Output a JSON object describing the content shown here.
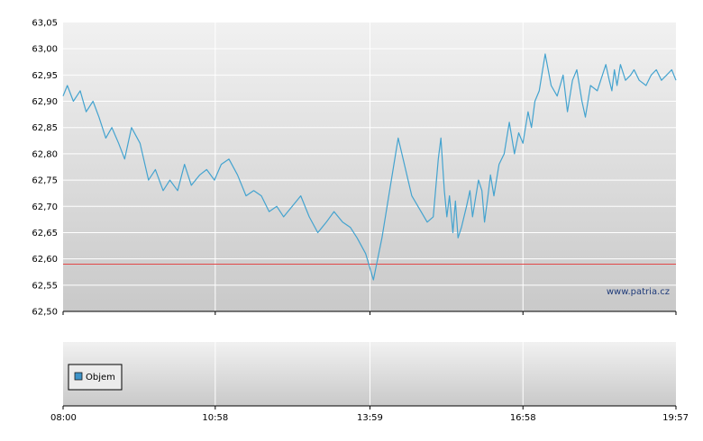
{
  "watermark": "www.patria.cz",
  "legend": {
    "label": "Objem",
    "swatch_color": "#3d93c8"
  },
  "colors": {
    "line": "#44a3cf",
    "reference": "#e24848",
    "grid": "#ffffff",
    "plot_top": "#f1f1f1",
    "plot_bottom": "#c9c9c9"
  },
  "chart_data": {
    "type": "line",
    "title": "",
    "xlabel": "",
    "ylabel": "",
    "ylim": [
      62.5,
      63.05
    ],
    "y_ticks": [
      "63,05",
      "63,00",
      "62,95",
      "62,90",
      "62,85",
      "62,80",
      "62,75",
      "62,70",
      "62,65",
      "62,60",
      "62,55",
      "62,50"
    ],
    "y_tick_values": [
      63.05,
      63.0,
      62.95,
      62.9,
      62.85,
      62.8,
      62.75,
      62.7,
      62.65,
      62.6,
      62.55,
      62.5
    ],
    "x_ticks": [
      "08:00",
      "10:58",
      "13:59",
      "16:58",
      "19:57"
    ],
    "x_tick_values": [
      "08:00",
      "10:58",
      "13:59",
      "16:58",
      "19:57"
    ],
    "grid": true,
    "reference_line": {
      "y": 62.59
    },
    "series": [
      {
        "x": [
          "08:00",
          "08:05",
          "08:12",
          "08:20",
          "08:27",
          "08:35",
          "08:42",
          "08:50",
          "08:57",
          "09:05",
          "09:12",
          "09:20",
          "09:30",
          "09:40",
          "09:48",
          "09:57",
          "10:05",
          "10:14",
          "10:22",
          "10:30",
          "10:40",
          "10:48",
          "10:57",
          "11:05",
          "11:14",
          "11:24",
          "11:34",
          "11:43",
          "11:52",
          "12:01",
          "12:10",
          "12:18",
          "12:28",
          "12:38",
          "12:48",
          "12:58",
          "13:08",
          "13:17",
          "13:27",
          "13:36",
          "13:44",
          "13:54",
          "14:03",
          "14:13",
          "14:24",
          "14:32",
          "14:48",
          "15:06",
          "15:13",
          "15:19",
          "15:22",
          "15:26",
          "15:29",
          "15:32",
          "15:36",
          "15:39",
          "15:42",
          "15:46",
          "15:52",
          "15:56",
          "15:59",
          "16:02",
          "16:06",
          "16:10",
          "16:13",
          "16:17",
          "16:20",
          "16:24",
          "16:30",
          "16:36",
          "16:42",
          "16:48",
          "16:53",
          "16:58",
          "17:04",
          "17:08",
          "17:12",
          "17:17",
          "17:24",
          "17:31",
          "17:38",
          "17:45",
          "17:50",
          "17:56",
          "18:01",
          "18:07",
          "18:11",
          "18:17",
          "18:25",
          "18:31",
          "18:35",
          "18:39",
          "18:42",
          "18:45",
          "18:48",
          "18:52",
          "18:58",
          "19:04",
          "19:08",
          "19:14",
          "19:22",
          "19:28",
          "19:34",
          "19:40",
          "19:46",
          "19:52",
          "19:57"
        ],
        "values": [
          62.91,
          62.93,
          62.9,
          62.92,
          62.88,
          62.9,
          62.87,
          62.83,
          62.85,
          62.82,
          62.79,
          62.85,
          62.82,
          62.75,
          62.77,
          62.73,
          62.75,
          62.73,
          62.78,
          62.74,
          62.76,
          62.77,
          62.75,
          62.78,
          62.79,
          62.76,
          62.72,
          62.73,
          62.72,
          62.69,
          62.7,
          62.68,
          62.7,
          62.72,
          62.68,
          62.65,
          62.67,
          62.69,
          62.67,
          62.66,
          62.64,
          62.61,
          62.56,
          62.64,
          62.75,
          62.83,
          62.72,
          62.67,
          62.68,
          62.79,
          62.83,
          62.73,
          62.68,
          62.72,
          62.65,
          62.71,
          62.64,
          62.66,
          62.7,
          62.73,
          62.68,
          62.71,
          62.75,
          62.73,
          62.67,
          62.72,
          62.76,
          62.72,
          62.78,
          62.8,
          62.86,
          62.8,
          62.84,
          62.82,
          62.88,
          62.85,
          62.9,
          62.92,
          62.99,
          62.93,
          62.91,
          62.95,
          62.88,
          62.94,
          62.96,
          62.9,
          62.87,
          62.93,
          62.92,
          62.95,
          62.97,
          62.94,
          62.92,
          62.96,
          62.93,
          62.97,
          62.94,
          62.95,
          62.96,
          62.94,
          62.93,
          62.95,
          62.96,
          62.94,
          62.95,
          62.96,
          62.94
        ]
      }
    ]
  }
}
